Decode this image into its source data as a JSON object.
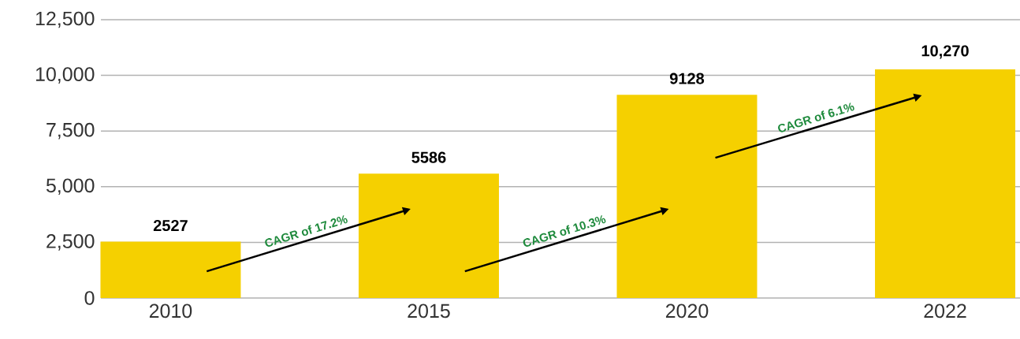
{
  "chart_data": {
    "type": "bar",
    "categories": [
      "2010",
      "2015",
      "2020",
      "2022"
    ],
    "values": [
      2527,
      5586,
      9128,
      10270
    ],
    "value_labels": [
      "2527",
      "5586",
      "9128",
      "10,270"
    ],
    "color": "#f5d000",
    "ylim": [
      0,
      12500
    ],
    "yticks": [
      0,
      {
        "value": 2500,
        "label": "2,500"
      },
      {
        "value": 5000,
        "label": "5,000"
      },
      {
        "value": 7500,
        "label": "7,500"
      },
      {
        "value": 10000,
        "label": "10,000"
      },
      {
        "value": 12500,
        "label": "12,500"
      }
    ],
    "grid": "y",
    "annotations": [
      "CAGR of 17.2%",
      "CAGR of 10.3%",
      "CAGR of 6.1%"
    ]
  }
}
